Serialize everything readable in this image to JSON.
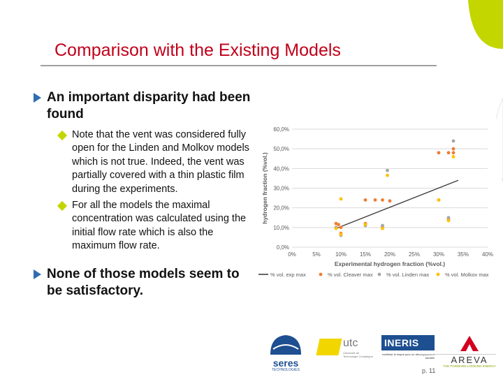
{
  "slide": {
    "title": "Comparison with the Existing Models",
    "page_number": "p. 11",
    "accent_green": "#c3d600",
    "title_color": "#c0001a",
    "bullet_arrow_color": "#2f6db0"
  },
  "bullets": [
    {
      "text": "An important disparity had been found",
      "sub": [
        "Note that the vent was considered fully open for the Linden and Molkov models which is not true. Indeed, the vent was partially covered with a thin plastic film during the experiments.",
        "For all the models the maximal concentration was calculated using the initial flow rate which is also the maximum flow rate."
      ]
    },
    {
      "text": "None of those models seem to be satisfactory.",
      "sub": []
    }
  ],
  "chart_data": {
    "type": "scatter",
    "xlabel": "Experimental hydrogen fraction (%vol.)",
    "ylabel": "hydrogen fraction (%vol.)",
    "xlim": [
      0,
      40
    ],
    "ylim": [
      0,
      60
    ],
    "xticks": [
      "0%",
      "5%",
      "10%",
      "15%",
      "20%",
      "25%",
      "30%",
      "35%",
      "40%"
    ],
    "yticks": [
      "0,0%",
      "10,0%",
      "20,0%",
      "30,0%",
      "40,0%",
      "50,0%",
      "60,0%"
    ],
    "grid": "horizontal",
    "legend_position": "bottom",
    "series": [
      {
        "name": "% vol. exp max",
        "kind": "line",
        "color": "#404040",
        "points": [
          [
            9,
            9.5
          ],
          [
            34,
            34
          ]
        ]
      },
      {
        "name": "% vol. Cleaver max",
        "kind": "scatter",
        "color": "#ed7d31",
        "points": [
          [
            9,
            12
          ],
          [
            9.5,
            11.5
          ],
          [
            10,
            10
          ],
          [
            10,
            7
          ],
          [
            15,
            12
          ],
          [
            15,
            24
          ],
          [
            17,
            24
          ],
          [
            18.5,
            10.5
          ],
          [
            18.5,
            24
          ],
          [
            20,
            23.5
          ],
          [
            30,
            48
          ],
          [
            32,
            48
          ],
          [
            33,
            50
          ],
          [
            33,
            48
          ],
          [
            32,
            14
          ]
        ]
      },
      {
        "name": "% vol. Linden max",
        "kind": "scatter",
        "color": "#a5a5a5",
        "points": [
          [
            9,
            10
          ],
          [
            10,
            6
          ],
          [
            15,
            11
          ],
          [
            18.5,
            11
          ],
          [
            19.5,
            39
          ],
          [
            33,
            54
          ],
          [
            30,
            24
          ],
          [
            32,
            15
          ]
        ]
      },
      {
        "name": "% vol. Molkov max",
        "kind": "scatter",
        "color": "#ffc000",
        "points": [
          [
            9,
            9.5
          ],
          [
            10,
            24.5
          ],
          [
            10,
            6.5
          ],
          [
            15,
            11.5
          ],
          [
            18.5,
            9.5
          ],
          [
            19.5,
            36.5
          ],
          [
            30,
            24
          ],
          [
            32,
            13.5
          ],
          [
            33,
            46
          ]
        ]
      }
    ]
  },
  "logos": {
    "seres": "seres",
    "seres_sub": "TECHNOLOGIES",
    "utc": "utc",
    "utc_sub": "Université de Technologie Compiègne",
    "ineris": "INERIS",
    "ineris_sub": "maîtriser le risque pour un développement durable",
    "areva": "AREVA",
    "areva_sub": "THE FORWARD-LOOKING ENERGY"
  }
}
